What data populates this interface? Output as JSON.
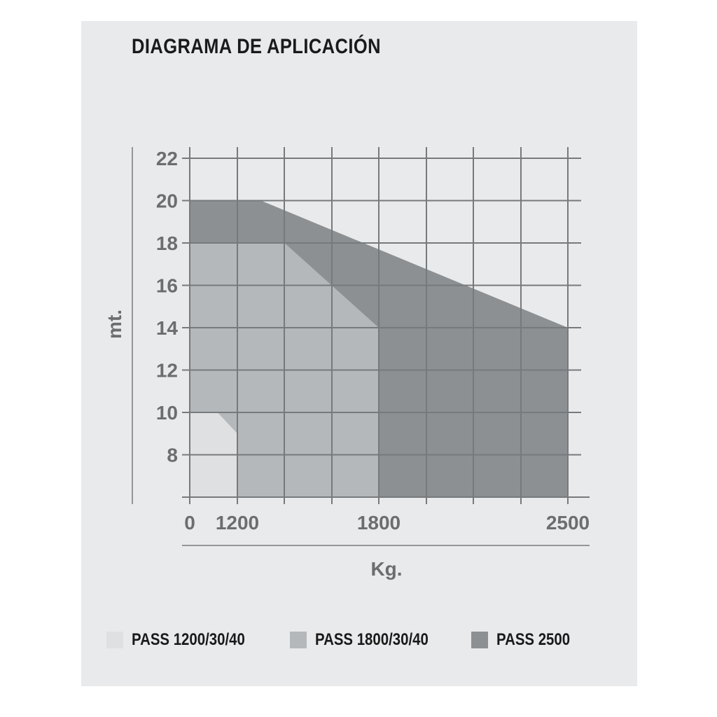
{
  "title": "DIAGRAMA DE APLICACIÓN",
  "colors": {
    "panel": "#e9eaeb",
    "grid": "#777a7d",
    "tick_text": "#6b6d70",
    "pass_1200": "#dfe0e1",
    "pass_1800": "#b5b8ba",
    "pass_2500": "#8d9092"
  },
  "chart_data": {
    "type": "area",
    "xlabel": "Kg.",
    "ylabel": "mt.",
    "x_ticks": [
      "0",
      "1200",
      "1800",
      "2500"
    ],
    "y_ticks": [
      "8",
      "10",
      "12",
      "14",
      "16",
      "18",
      "20",
      "22"
    ],
    "ylim": [
      6,
      22
    ],
    "grid": true,
    "legend_position": "bottom",
    "series": [
      {
        "name": "PASS 1200/30/40",
        "color_key": "pass_1200",
        "points": [
          [
            0,
            6
          ],
          [
            0,
            10
          ],
          [
            700,
            10
          ],
          [
            1200,
            9
          ],
          [
            1200,
            6
          ]
        ]
      },
      {
        "name": "PASS 1800/30/40",
        "color_key": "pass_1800",
        "points": [
          [
            0,
            6
          ],
          [
            0,
            18
          ],
          [
            1400,
            18
          ],
          [
            1800,
            14
          ],
          [
            1800,
            6
          ]
        ]
      },
      {
        "name": "PASS 2500",
        "color_key": "pass_2500",
        "points": [
          [
            0,
            6
          ],
          [
            0,
            20
          ],
          [
            1300,
            20
          ],
          [
            2500,
            14
          ],
          [
            2500,
            6
          ]
        ]
      }
    ]
  }
}
